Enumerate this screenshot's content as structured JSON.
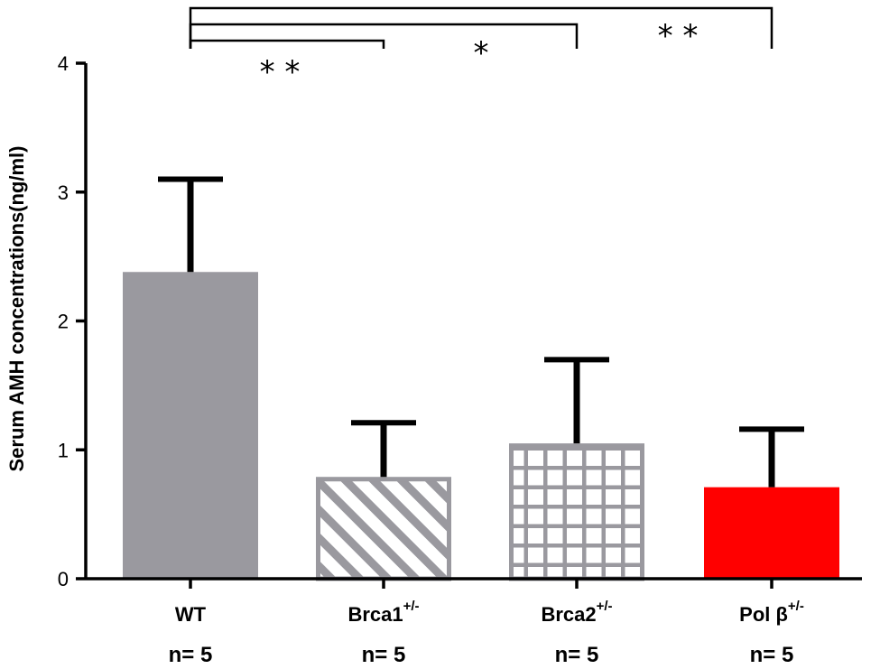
{
  "chart_data": {
    "type": "bar",
    "title": "",
    "xlabel": "",
    "ylabel": "Serum AMH concentrations(ng/ml)",
    "ylim": [
      0,
      4
    ],
    "yticks": [
      "0",
      "1",
      "2",
      "3",
      "4"
    ],
    "categories": [
      {
        "base": "WT",
        "sup": "",
        "n_label": "n= 5"
      },
      {
        "base": "Brca1",
        "sup": "+/-",
        "n_label": "n= 5"
      },
      {
        "base": "Brca2",
        "sup": "+/-",
        "n_label": "n= 5"
      },
      {
        "base": "Pol β",
        "sup": "+/-",
        "n_label": "n= 5"
      }
    ],
    "values": [
      2.38,
      0.79,
      1.05,
      0.71
    ],
    "errors": [
      0.72,
      0.42,
      0.65,
      0.45
    ],
    "styles": [
      {
        "fill": "solid",
        "color": "#9a999f"
      },
      {
        "fill": "diagonal-hatch",
        "color": "#9a999f"
      },
      {
        "fill": "grid",
        "color": "#9a999f"
      },
      {
        "fill": "solid",
        "color": "#ff0000"
      }
    ],
    "significance": [
      {
        "from": 0,
        "to": 1,
        "label": "* *"
      },
      {
        "from": 0,
        "to": 2,
        "label": "*"
      },
      {
        "from": 0,
        "to": 3,
        "label": "* *"
      }
    ]
  }
}
